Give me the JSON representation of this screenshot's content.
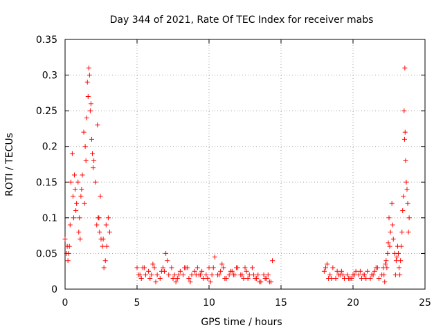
{
  "chart_data": {
    "type": "scatter",
    "title": "Day 344 of 2021, Rate Of TEC Index for receiver mabs",
    "xlabel": "GPS time / hours",
    "ylabel": "ROTI / TECUs",
    "xlim": [
      0,
      25
    ],
    "ylim": [
      0,
      0.35
    ],
    "xticks": [
      0,
      5,
      10,
      15,
      20,
      25
    ],
    "xtick_labels": [
      "0",
      "5",
      "10",
      "15",
      "20",
      "25"
    ],
    "yticks": [
      0,
      0.05,
      0.1,
      0.15,
      0.2,
      0.25,
      0.3,
      0.35
    ],
    "ytick_labels": [
      "0",
      "0.05",
      "0.1",
      "0.15",
      "0.2",
      "0.25",
      "0.3",
      "0.35"
    ],
    "grid": true,
    "marker": "+",
    "color": "#ff0000",
    "series": [
      {
        "x": [
          0.0,
          0.1,
          0.2,
          0.3,
          0.4,
          0.5,
          0.6,
          0.7,
          0.8,
          0.9,
          1.0,
          1.1,
          1.2,
          1.3,
          1.4,
          1.5,
          1.55,
          1.6,
          1.65,
          1.7,
          1.75,
          1.8,
          1.9,
          2.0,
          2.1,
          2.2,
          2.3,
          2.4,
          2.5,
          2.6,
          2.7,
          2.8,
          2.9,
          3.0,
          3.1,
          0.15,
          0.35,
          0.55,
          0.75,
          0.95,
          1.15,
          1.45,
          1.85,
          2.25,
          2.45,
          2.65,
          2.85,
          0.25,
          0.65,
          1.05,
          1.35,
          1.95,
          2.35,
          5.0,
          5.2,
          5.4,
          5.6,
          5.8,
          6.0,
          6.2,
          6.4,
          6.6,
          6.8,
          7.0,
          7.2,
          7.4,
          7.6,
          7.8,
          8.0,
          8.2,
          8.4,
          8.6,
          8.8,
          9.0,
          9.2,
          9.4,
          9.6,
          9.8,
          10.0,
          10.2,
          10.4,
          10.6,
          10.8,
          11.0,
          11.2,
          11.4,
          11.6,
          11.8,
          12.0,
          12.2,
          12.4,
          12.6,
          12.8,
          13.0,
          13.2,
          13.4,
          13.6,
          13.8,
          14.0,
          14.2,
          14.4,
          5.1,
          5.5,
          5.9,
          6.3,
          6.7,
          7.1,
          7.5,
          7.9,
          8.3,
          8.7,
          9.1,
          9.5,
          9.9,
          10.3,
          10.7,
          11.1,
          11.5,
          11.9,
          12.3,
          12.7,
          13.1,
          13.5,
          13.9,
          14.3,
          5.3,
          6.1,
          6.9,
          7.7,
          8.5,
          9.3,
          10.1,
          10.9,
          11.7,
          12.5,
          13.3,
          14.1,
          18.0,
          18.2,
          18.4,
          18.6,
          18.8,
          19.0,
          19.2,
          19.4,
          19.6,
          19.8,
          20.0,
          20.2,
          20.4,
          20.6,
          20.8,
          21.0,
          21.2,
          21.4,
          21.6,
          21.8,
          22.0,
          22.1,
          22.2,
          22.3,
          22.4,
          22.5,
          22.6,
          22.7,
          22.8,
          22.9,
          23.0,
          23.1,
          23.2,
          23.3,
          23.4,
          23.5,
          23.55,
          23.6,
          23.65,
          23.7,
          23.8,
          23.9,
          18.1,
          18.5,
          18.9,
          19.3,
          19.7,
          20.1,
          20.5,
          20.9,
          21.3,
          21.7,
          22.15,
          22.35,
          22.55,
          22.75,
          22.95,
          23.15,
          23.35,
          23.45,
          23.75,
          23.85,
          18.3,
          19.1,
          19.9,
          20.7,
          21.5,
          22.25,
          22.45,
          23.05,
          23.25,
          23.58,
          23.62
        ],
        "y": [
          0.07,
          0.05,
          0.04,
          0.06,
          0.15,
          0.19,
          0.1,
          0.14,
          0.12,
          0.15,
          0.1,
          0.13,
          0.16,
          0.22,
          0.2,
          0.24,
          0.29,
          0.27,
          0.31,
          0.3,
          0.25,
          0.26,
          0.19,
          0.18,
          0.15,
          0.09,
          0.1,
          0.08,
          0.07,
          0.06,
          0.03,
          0.04,
          0.06,
          0.1,
          0.08,
          0.06,
          0.09,
          0.13,
          0.11,
          0.08,
          0.14,
          0.18,
          0.21,
          0.23,
          0.13,
          0.07,
          0.09,
          0.05,
          0.16,
          0.07,
          0.12,
          0.17,
          0.1,
          0.03,
          0.02,
          0.03,
          0.02,
          0.025,
          0.02,
          0.03,
          0.02,
          0.015,
          0.03,
          0.05,
          0.02,
          0.03,
          0.02,
          0.015,
          0.025,
          0.02,
          0.03,
          0.015,
          0.02,
          0.025,
          0.03,
          0.02,
          0.015,
          0.02,
          0.03,
          0.02,
          0.045,
          0.02,
          0.025,
          0.03,
          0.015,
          0.02,
          0.025,
          0.02,
          0.03,
          0.02,
          0.015,
          0.025,
          0.02,
          0.03,
          0.015,
          0.02,
          0.01,
          0.02,
          0.015,
          0.01,
          0.04,
          0.02,
          0.03,
          0.015,
          0.01,
          0.025,
          0.04,
          0.015,
          0.02,
          0.03,
          0.01,
          0.02,
          0.025,
          0.015,
          0.03,
          0.02,
          0.015,
          0.025,
          0.03,
          0.02,
          0.015,
          0.02,
          0.01,
          0.015,
          0.01,
          0.015,
          0.035,
          0.025,
          0.01,
          0.03,
          0.02,
          0.01,
          0.035,
          0.02,
          0.03,
          0.015,
          0.02,
          0.025,
          0.035,
          0.02,
          0.03,
          0.015,
          0.02,
          0.025,
          0.015,
          0.02,
          0.015,
          0.02,
          0.025,
          0.02,
          0.015,
          0.02,
          0.025,
          0.015,
          0.02,
          0.03,
          0.015,
          0.02,
          0.03,
          0.01,
          0.04,
          0.05,
          0.1,
          0.08,
          0.12,
          0.07,
          0.05,
          0.04,
          0.06,
          0.03,
          0.04,
          0.08,
          0.13,
          0.25,
          0.31,
          0.18,
          0.15,
          0.12,
          0.1,
          0.03,
          0.015,
          0.025,
          0.02,
          0.015,
          0.02,
          0.025,
          0.015,
          0.02,
          0.03,
          0.02,
          0.03,
          0.06,
          0.09,
          0.02,
          0.05,
          0.06,
          0.11,
          0.14,
          0.08,
          0.015,
          0.02,
          0.015,
          0.02,
          0.025,
          0.035,
          0.065,
          0.045,
          0.02,
          0.21,
          0.22
        ]
      }
    ]
  }
}
